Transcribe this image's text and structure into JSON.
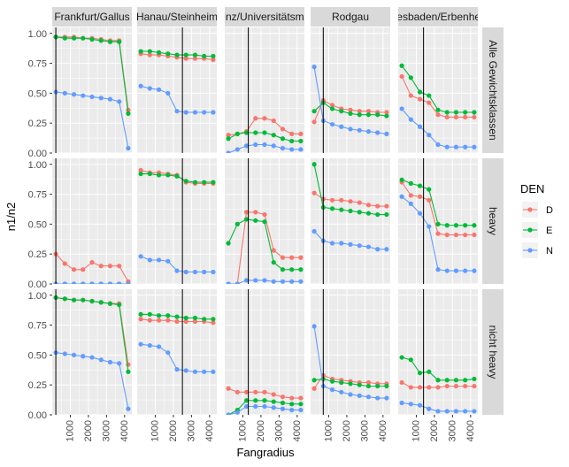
{
  "chart_data": {
    "type": "line",
    "xlabel": "Fangradius",
    "ylabel": "n1/n2",
    "x_ticks": [
      1000,
      2000,
      3000,
      4000
    ],
    "y_ticks": [
      "0.00",
      "0.25",
      "0.50",
      "0.75",
      "1.00"
    ],
    "ylim": [
      0,
      1.05
    ],
    "legend": {
      "title": "DEN",
      "placement": "right",
      "entries": [
        {
          "name": "D",
          "color": "#F8766D"
        },
        {
          "name": "E",
          "color": "#00BA38"
        },
        {
          "name": "N",
          "color": "#619CFF"
        }
      ]
    },
    "col_facets": [
      "Frankfurt/Gallus",
      "Hanau/Steinheim",
      "Mainz/Universitätsmeile",
      "Rodgau",
      "Wiesbaden/Erbenheim"
    ],
    "row_facets": [
      "Alle Gewichtsklassen",
      "heavy",
      "nicht heavy"
    ],
    "vlines": [
      200,
      2500,
      1300,
      700,
      1400
    ],
    "x": [
      200,
      700,
      1200,
      1700,
      2200,
      2700,
      3200,
      3700,
      4200
    ],
    "panels": [
      [
        {
          "D": [
            0.97,
            0.97,
            0.97,
            0.96,
            0.96,
            0.95,
            0.94,
            0.94,
            0.36
          ],
          "E": [
            0.97,
            0.96,
            0.96,
            0.96,
            0.95,
            0.94,
            0.93,
            0.93,
            0.33
          ],
          "N": [
            0.51,
            0.5,
            0.49,
            0.48,
            0.47,
            0.46,
            0.45,
            0.43,
            0.04
          ]
        },
        {
          "D": [
            0.83,
            0.82,
            0.82,
            0.81,
            0.8,
            0.79,
            0.79,
            0.79,
            0.78
          ],
          "E": [
            0.85,
            0.85,
            0.84,
            0.83,
            0.82,
            0.82,
            0.82,
            0.81,
            0.81
          ],
          "N": [
            0.56,
            0.54,
            0.53,
            0.5,
            0.35,
            0.34,
            0.34,
            0.34,
            0.34
          ]
        },
        {
          "D": [
            0.15,
            0.16,
            0.18,
            0.29,
            0.29,
            0.27,
            0.2,
            0.16,
            0.16
          ],
          "E": [
            0.12,
            0.16,
            0.17,
            0.17,
            0.17,
            0.15,
            0.12,
            0.1,
            0.1
          ],
          "N": [
            0.0,
            0.03,
            0.06,
            0.07,
            0.07,
            0.06,
            0.04,
            0.03,
            0.03
          ]
        },
        {
          "D": [
            0.26,
            0.44,
            0.4,
            0.37,
            0.36,
            0.35,
            0.35,
            0.34,
            0.34
          ],
          "E": [
            0.35,
            0.42,
            0.37,
            0.35,
            0.33,
            0.32,
            0.32,
            0.32,
            0.31
          ],
          "N": [
            0.72,
            0.27,
            0.24,
            0.22,
            0.2,
            0.19,
            0.18,
            0.17,
            0.16
          ]
        },
        {
          "D": [
            0.64,
            0.48,
            0.45,
            0.42,
            0.32,
            0.3,
            0.3,
            0.3,
            0.3
          ],
          "E": [
            0.73,
            0.63,
            0.51,
            0.48,
            0.36,
            0.34,
            0.34,
            0.34,
            0.34
          ],
          "N": [
            0.37,
            0.28,
            0.22,
            0.15,
            0.07,
            0.05,
            0.05,
            0.05,
            0.05
          ]
        }
      ],
      [
        {
          "D": [
            0.25,
            0.17,
            0.12,
            0.12,
            0.18,
            0.15,
            0.15,
            0.15,
            0.02
          ],
          "E": [
            0.0,
            0.0,
            0.0,
            0.0,
            0.0,
            0.0,
            0.0,
            0.0,
            0.0
          ],
          "N": [
            0.0,
            0.0,
            0.0,
            0.0,
            0.0,
            0.0,
            0.0,
            0.0,
            0.0
          ]
        },
        {
          "D": [
            0.95,
            0.93,
            0.93,
            0.92,
            0.91,
            0.85,
            0.84,
            0.84,
            0.84
          ],
          "E": [
            0.92,
            0.92,
            0.91,
            0.91,
            0.9,
            0.86,
            0.85,
            0.85,
            0.85
          ],
          "N": [
            0.23,
            0.2,
            0.2,
            0.19,
            0.11,
            0.1,
            0.1,
            0.1,
            0.1
          ]
        },
        {
          "D": [
            0.0,
            0.0,
            0.6,
            0.6,
            0.58,
            0.28,
            0.22,
            0.22,
            0.22
          ],
          "E": [
            0.34,
            0.5,
            0.54,
            0.53,
            0.52,
            0.18,
            0.12,
            0.12,
            0.12
          ],
          "N": [
            0.0,
            0.0,
            0.03,
            0.03,
            0.03,
            0.02,
            0.02,
            0.02,
            0.02
          ]
        },
        {
          "D": [
            0.76,
            0.71,
            0.7,
            0.7,
            0.69,
            0.68,
            0.66,
            0.65,
            0.65
          ],
          "E": [
            1.0,
            0.64,
            0.63,
            0.62,
            0.61,
            0.6,
            0.59,
            0.58,
            0.58
          ],
          "N": [
            0.44,
            0.36,
            0.34,
            0.34,
            0.33,
            0.32,
            0.31,
            0.29,
            0.29
          ]
        },
        {
          "D": [
            0.85,
            0.74,
            0.73,
            0.7,
            0.42,
            0.41,
            0.41,
            0.41,
            0.41
          ],
          "E": [
            0.87,
            0.84,
            0.82,
            0.79,
            0.5,
            0.49,
            0.49,
            0.49,
            0.49
          ],
          "N": [
            0.73,
            0.67,
            0.59,
            0.48,
            0.12,
            0.11,
            0.11,
            0.11,
            0.11
          ]
        }
      ],
      [
        {
          "D": [
            0.98,
            0.97,
            0.96,
            0.96,
            0.95,
            0.94,
            0.93,
            0.93,
            0.42
          ],
          "E": [
            0.98,
            0.97,
            0.96,
            0.96,
            0.95,
            0.94,
            0.93,
            0.92,
            0.36
          ],
          "N": [
            0.52,
            0.51,
            0.5,
            0.49,
            0.48,
            0.46,
            0.44,
            0.43,
            0.05
          ]
        },
        {
          "D": [
            0.8,
            0.79,
            0.79,
            0.79,
            0.78,
            0.78,
            0.78,
            0.78,
            0.77
          ],
          "E": [
            0.84,
            0.84,
            0.83,
            0.83,
            0.82,
            0.81,
            0.81,
            0.8,
            0.8
          ],
          "N": [
            0.59,
            0.58,
            0.57,
            0.52,
            0.38,
            0.37,
            0.36,
            0.36,
            0.36
          ]
        },
        {
          "D": [
            0.22,
            0.19,
            0.19,
            0.19,
            0.19,
            0.17,
            0.15,
            0.14,
            0.14
          ],
          "E": [
            0.0,
            0.04,
            0.12,
            0.12,
            0.12,
            0.11,
            0.1,
            0.09,
            0.09
          ],
          "N": [
            0.0,
            0.02,
            0.07,
            0.07,
            0.07,
            0.06,
            0.05,
            0.04,
            0.04
          ]
        },
        {
          "D": [
            0.22,
            0.33,
            0.3,
            0.29,
            0.28,
            0.27,
            0.27,
            0.26,
            0.26
          ],
          "E": [
            0.29,
            0.3,
            0.28,
            0.27,
            0.26,
            0.25,
            0.24,
            0.24,
            0.24
          ],
          "N": [
            0.74,
            0.24,
            0.21,
            0.19,
            0.17,
            0.16,
            0.15,
            0.14,
            0.14
          ]
        },
        {
          "D": [
            0.27,
            0.23,
            0.23,
            0.23,
            0.23,
            0.24,
            0.24,
            0.24,
            0.24
          ],
          "E": [
            0.48,
            0.46,
            0.35,
            0.36,
            0.29,
            0.29,
            0.29,
            0.29,
            0.3
          ],
          "N": [
            0.1,
            0.09,
            0.08,
            0.05,
            0.03,
            0.03,
            0.03,
            0.03,
            0.03
          ]
        }
      ]
    ]
  }
}
